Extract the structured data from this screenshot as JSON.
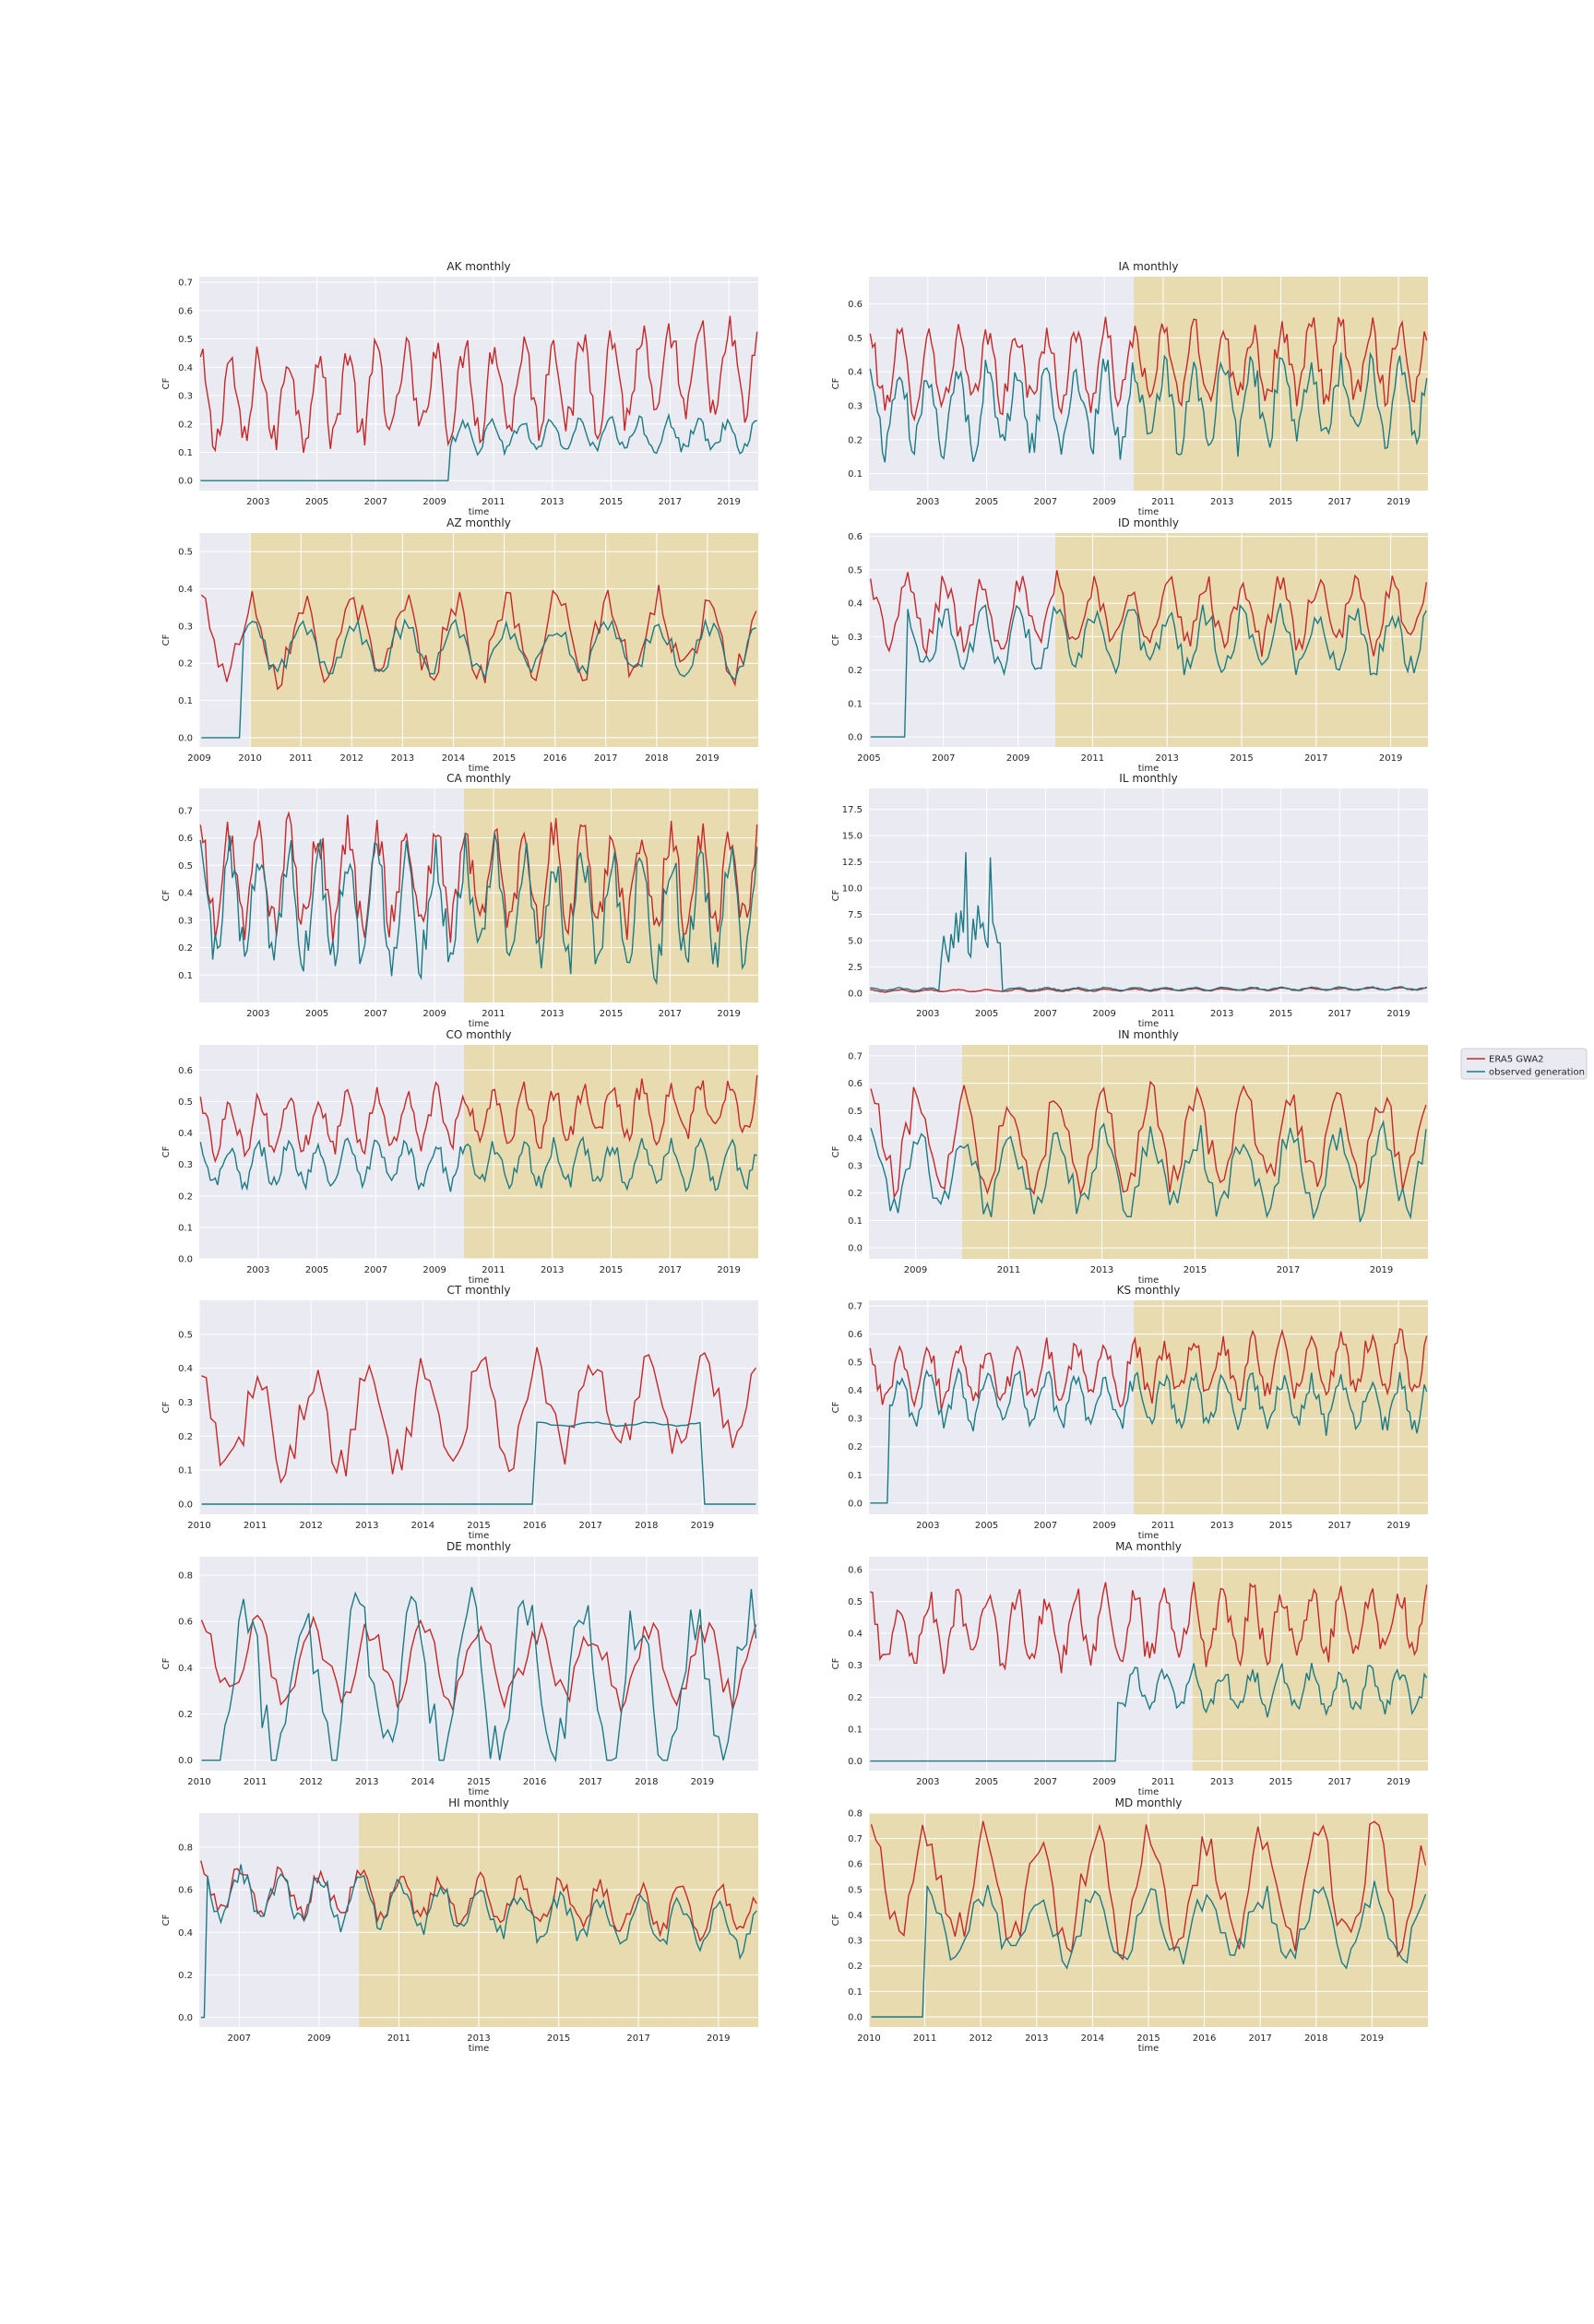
{
  "figure": {
    "x_axis_label": "time",
    "y_axis_label": "CF",
    "legend": {
      "placement": "right of figure",
      "entries": [
        {
          "label": "ERA5 GWA2",
          "color": "#c62828"
        },
        {
          "label": "observed generation",
          "color": "#1b7b85"
        }
      ]
    },
    "colors": {
      "plot_background": "#eaeaf2",
      "highlight_span": "#e8dbb0",
      "grid": "#ffffff"
    }
  },
  "chart_data": [
    {
      "type": "line",
      "title": "AK monthly",
      "grid": true,
      "xlim": [
        "2001-01",
        "2019-12"
      ],
      "ylim": [
        -0.035,
        0.72
      ],
      "yticks": [
        "0.0",
        "0.1",
        "0.2",
        "0.3",
        "0.4",
        "0.5",
        "0.6",
        "0.7"
      ],
      "xticks": [
        "2003",
        "2005",
        "2007",
        "2009",
        "2011",
        "2013",
        "2015",
        "2017",
        "2019"
      ],
      "highlight": null,
      "series": [
        {
          "name": "ERA5 GWA2",
          "mean": 0.33,
          "amplitude": 0.15,
          "trend": 0.12,
          "phase": 0,
          "start": "2001-01"
        },
        {
          "name": "observed generation",
          "mean": 0.16,
          "amplitude": 0.05,
          "trend": 0,
          "phase": 0.5,
          "start": "2009-07"
        }
      ]
    },
    {
      "type": "line",
      "title": "IA monthly",
      "grid": true,
      "xlim": [
        "2001-01",
        "2019-12"
      ],
      "ylim": [
        0.05,
        0.68
      ],
      "yticks": [
        "0.1",
        "0.2",
        "0.3",
        "0.4",
        "0.5",
        "0.6"
      ],
      "xticks": [
        "2003",
        "2005",
        "2007",
        "2009",
        "2011",
        "2013",
        "2015",
        "2017",
        "2019"
      ],
      "highlight": [
        "2010-01",
        "2019-12"
      ],
      "series": [
        {
          "name": "ERA5 GWA2",
          "mean": 0.42,
          "amplitude": 0.1,
          "trend": 0.04,
          "phase": 0,
          "start": "2001-01"
        },
        {
          "name": "observed generation",
          "mean": 0.3,
          "amplitude": 0.11,
          "trend": 0.03,
          "phase": 0,
          "start": "2001-01"
        }
      ]
    },
    {
      "type": "line",
      "title": "AZ monthly",
      "grid": true,
      "xlim": [
        "2009-01",
        "2019-12"
      ],
      "ylim": [
        -0.025,
        0.55
      ],
      "yticks": [
        "0.0",
        "0.1",
        "0.2",
        "0.3",
        "0.4",
        "0.5"
      ],
      "xticks": [
        "2009",
        "2010",
        "2011",
        "2012",
        "2013",
        "2014",
        "2015",
        "2016",
        "2017",
        "2018",
        "2019"
      ],
      "highlight": [
        "2010-01",
        "2019-12"
      ],
      "series": [
        {
          "name": "ERA5 GWA2",
          "mean": 0.27,
          "amplitude": 0.1,
          "trend": 0,
          "phase": 0,
          "start": "2009-01"
        },
        {
          "name": "observed generation",
          "mean": 0.24,
          "amplitude": 0.06,
          "trend": 0,
          "phase": 0,
          "start": "2009-11"
        }
      ]
    },
    {
      "type": "line",
      "title": "ID monthly",
      "grid": true,
      "xlim": [
        "2005-01",
        "2019-12"
      ],
      "ylim": [
        -0.03,
        0.61
      ],
      "yticks": [
        "0.0",
        "0.1",
        "0.2",
        "0.3",
        "0.4",
        "0.5",
        "0.6"
      ],
      "xticks": [
        "2005",
        "2007",
        "2009",
        "2011",
        "2013",
        "2015",
        "2017",
        "2019"
      ],
      "highlight": [
        "2010-01",
        "2019-12"
      ],
      "series": [
        {
          "name": "ERA5 GWA2",
          "mean": 0.37,
          "amplitude": 0.09,
          "trend": 0,
          "phase": 0,
          "start": "2005-01"
        },
        {
          "name": "observed generation",
          "mean": 0.29,
          "amplitude": 0.08,
          "trend": 0,
          "phase": 0,
          "start": "2006-01"
        }
      ]
    },
    {
      "type": "line",
      "title": "CA monthly",
      "grid": true,
      "xlim": [
        "2001-01",
        "2019-12"
      ],
      "ylim": [
        0.0,
        0.78
      ],
      "yticks": [
        "0.1",
        "0.2",
        "0.3",
        "0.4",
        "0.5",
        "0.6",
        "0.7"
      ],
      "xticks": [
        "2003",
        "2005",
        "2007",
        "2009",
        "2011",
        "2013",
        "2015",
        "2017",
        "2019"
      ],
      "highlight": [
        "2010-01",
        "2019-12"
      ],
      "series": [
        {
          "name": "ERA5 GWA2",
          "mean": 0.45,
          "amplitude": 0.17,
          "trend": 0,
          "phase": 0,
          "start": "2001-01"
        },
        {
          "name": "observed generation",
          "mean": 0.35,
          "amplitude": 0.19,
          "trend": -0.04,
          "phase": 0,
          "start": "2001-01"
        }
      ]
    },
    {
      "type": "line",
      "title": "IL monthly",
      "grid": true,
      "xlim": [
        "2001-01",
        "2019-12"
      ],
      "ylim": [
        -0.9,
        19.5
      ],
      "yticks": [
        "0.0",
        "2.5",
        "5.0",
        "7.5",
        "10.0",
        "12.5",
        "15.0",
        "17.5"
      ],
      "xticks": [
        "2003",
        "2005",
        "2007",
        "2009",
        "2011",
        "2013",
        "2015",
        "2017",
        "2019"
      ],
      "highlight": null,
      "series": [
        {
          "name": "ERA5 GWA2",
          "mean": 0.3,
          "amplitude": 0.1,
          "trend": 0.2,
          "phase": 0,
          "start": "2001-01"
        },
        {
          "name": "observed generation",
          "mean": 0.4,
          "amplitude": 0.12,
          "trend": 0.1,
          "phase": 0,
          "start": "2001-01"
        }
      ]
    },
    {
      "type": "line",
      "title": "CO monthly",
      "grid": true,
      "xlim": [
        "2001-01",
        "2019-12"
      ],
      "ylim": [
        0.0,
        0.68
      ],
      "yticks": [
        "0.0",
        "0.1",
        "0.2",
        "0.3",
        "0.4",
        "0.5",
        "0.6"
      ],
      "xticks": [
        "2003",
        "2005",
        "2007",
        "2009",
        "2011",
        "2013",
        "2015",
        "2017",
        "2019"
      ],
      "highlight": [
        "2010-01",
        "2019-12"
      ],
      "series": [
        {
          "name": "ERA5 GWA2",
          "mean": 0.45,
          "amplitude": 0.08,
          "trend": 0.06,
          "phase": 0,
          "start": "2001-01"
        },
        {
          "name": "observed generation",
          "mean": 0.3,
          "amplitude": 0.06,
          "trend": 0,
          "phase": 0,
          "start": "2001-01"
        }
      ]
    },
    {
      "type": "line",
      "title": "IN monthly",
      "grid": true,
      "xlim": [
        "2008-01",
        "2019-12"
      ],
      "ylim": [
        -0.04,
        0.74
      ],
      "yticks": [
        "0.0",
        "0.1",
        "0.2",
        "0.3",
        "0.4",
        "0.5",
        "0.6",
        "0.7"
      ],
      "xticks": [
        "2009",
        "2011",
        "2013",
        "2015",
        "2017",
        "2019"
      ],
      "highlight": [
        "2010-01",
        "2019-12"
      ],
      "series": [
        {
          "name": "ERA5 GWA2",
          "mean": 0.4,
          "amplitude": 0.15,
          "trend": 0,
          "phase": 0,
          "start": "2008-01"
        },
        {
          "name": "observed generation",
          "mean": 0.28,
          "amplitude": 0.13,
          "trend": 0,
          "phase": 0,
          "start": "2008-01"
        }
      ]
    },
    {
      "type": "line",
      "title": "CT monthly",
      "grid": true,
      "xlim": [
        "2010-01",
        "2019-12"
      ],
      "ylim": [
        -0.03,
        0.6
      ],
      "yticks": [
        "0.0",
        "0.1",
        "0.2",
        "0.3",
        "0.4",
        "0.5"
      ],
      "xticks": [
        "2010",
        "2011",
        "2012",
        "2013",
        "2014",
        "2015",
        "2016",
        "2017",
        "2018",
        "2019"
      ],
      "highlight": null,
      "series": [
        {
          "name": "ERA5 GWA2",
          "mean": 0.27,
          "amplitude": 0.13,
          "trend": 0.1,
          "phase": 0,
          "start": "2010-01"
        },
        {
          "name": "observed generation",
          "mean": 0.235,
          "amplitude": 0.005,
          "trend": 0,
          "phase": 0,
          "start": "2016-01",
          "end": "2018-12"
        }
      ]
    },
    {
      "type": "line",
      "title": "KS monthly",
      "grid": true,
      "xlim": [
        "2001-01",
        "2019-12"
      ],
      "ylim": [
        -0.04,
        0.72
      ],
      "yticks": [
        "0.0",
        "0.1",
        "0.2",
        "0.3",
        "0.4",
        "0.5",
        "0.6",
        "0.7"
      ],
      "xticks": [
        "2003",
        "2005",
        "2007",
        "2009",
        "2011",
        "2013",
        "2015",
        "2017",
        "2019"
      ],
      "highlight": [
        "2010-01",
        "2019-12"
      ],
      "series": [
        {
          "name": "ERA5 GWA2",
          "mean": 0.47,
          "amplitude": 0.09,
          "trend": 0.06,
          "phase": 0,
          "start": "2001-01"
        },
        {
          "name": "observed generation",
          "mean": 0.36,
          "amplitude": 0.08,
          "trend": -0.02,
          "phase": 0,
          "start": "2001-09"
        }
      ]
    },
    {
      "type": "line",
      "title": "DE monthly",
      "grid": true,
      "xlim": [
        "2010-01",
        "2019-12"
      ],
      "ylim": [
        -0.045,
        0.88
      ],
      "yticks": [
        "0.0",
        "0.2",
        "0.4",
        "0.6",
        "0.8"
      ],
      "xticks": [
        "2010",
        "2011",
        "2012",
        "2013",
        "2014",
        "2015",
        "2016",
        "2017",
        "2018",
        "2019"
      ],
      "highlight": null,
      "series": [
        {
          "name": "ERA5 GWA2",
          "mean": 0.42,
          "amplitude": 0.15,
          "trend": 0,
          "phase": 0,
          "start": "2010-01"
        },
        {
          "name": "observed generation",
          "mean": 0.32,
          "amplitude": 0.32,
          "trend": 0,
          "phase": 1.2,
          "start": "2010-06"
        }
      ]
    },
    {
      "type": "line",
      "title": "MA monthly",
      "grid": true,
      "xlim": [
        "2001-01",
        "2019-12"
      ],
      "ylim": [
        -0.03,
        0.64
      ],
      "yticks": [
        "0.0",
        "0.1",
        "0.2",
        "0.3",
        "0.4",
        "0.5",
        "0.6"
      ],
      "xticks": [
        "2003",
        "2005",
        "2007",
        "2009",
        "2011",
        "2013",
        "2015",
        "2017",
        "2019"
      ],
      "highlight": [
        "2012-01",
        "2019-12"
      ],
      "series": [
        {
          "name": "ERA5 GWA2",
          "mean": 0.42,
          "amplitude": 0.1,
          "trend": 0.03,
          "phase": 0,
          "start": "2001-01"
        },
        {
          "name": "observed generation",
          "mean": 0.22,
          "amplitude": 0.06,
          "trend": 0,
          "phase": 0,
          "start": "2009-06"
        }
      ]
    },
    {
      "type": "line",
      "title": "HI monthly",
      "grid": true,
      "xlim": [
        "2006-01",
        "2019-12"
      ],
      "ylim": [
        -0.045,
        0.96
      ],
      "yticks": [
        "0.0",
        "0.2",
        "0.4",
        "0.6",
        "0.8"
      ],
      "xticks": [
        "2007",
        "2009",
        "2011",
        "2013",
        "2015",
        "2017",
        "2019"
      ],
      "highlight": [
        "2010-01",
        "2019-12"
      ],
      "series": [
        {
          "name": "ERA5 GWA2",
          "mean": 0.55,
          "amplitude": 0.1,
          "trend": -0.12,
          "phase": 0,
          "start": "2006-01"
        },
        {
          "name": "observed generation",
          "mean": 0.5,
          "amplitude": 0.1,
          "trend": -0.18,
          "phase": 0,
          "start": "2006-03"
        }
      ]
    },
    {
      "type": "line",
      "title": "MD monthly",
      "grid": true,
      "xlim": [
        "2010-01",
        "2019-12"
      ],
      "ylim": [
        -0.04,
        0.8
      ],
      "yticks": [
        "0.0",
        "0.1",
        "0.2",
        "0.3",
        "0.4",
        "0.5",
        "0.6",
        "0.7",
        "0.8"
      ],
      "xticks": [
        "2010",
        "2011",
        "2012",
        "2013",
        "2014",
        "2015",
        "2016",
        "2017",
        "2018",
        "2019"
      ],
      "highlight": [
        "2010-01",
        "2019-12"
      ],
      "series": [
        {
          "name": "ERA5 GWA2",
          "mean": 0.5,
          "amplitude": 0.2,
          "trend": 0,
          "phase": 0,
          "start": "2010-01"
        },
        {
          "name": "observed generation",
          "mean": 0.36,
          "amplitude": 0.12,
          "trend": 0,
          "phase": 0,
          "start": "2011-01"
        }
      ]
    }
  ]
}
